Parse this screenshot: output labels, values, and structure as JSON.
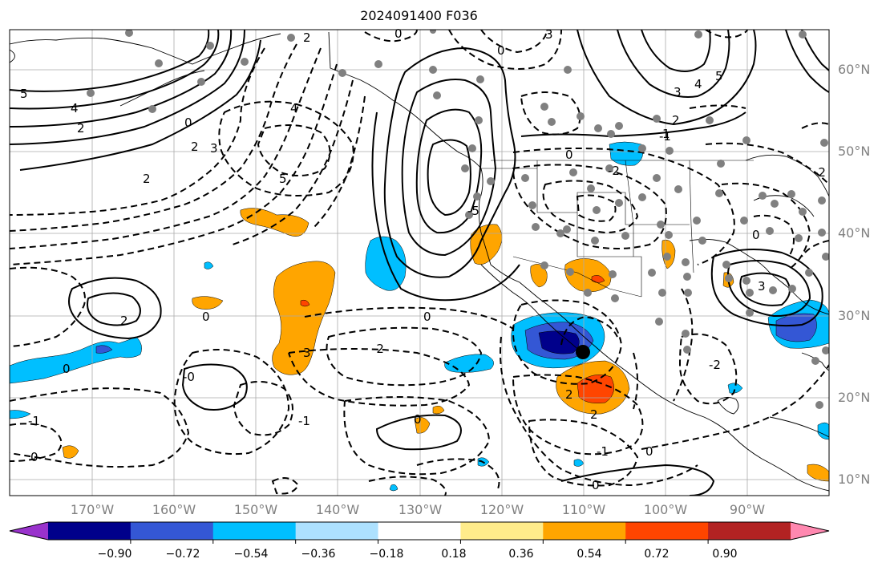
{
  "title": "2024091400 F036",
  "lat_labels": [
    "60°N",
    "50°N",
    "40°N",
    "30°N",
    "20°N",
    "10°N"
  ],
  "lon_labels": [
    "170°W",
    "160°W",
    "150°W",
    "140°W",
    "130°W",
    "120°W",
    "110°W",
    "100°W",
    "90°W"
  ],
  "colorbar": {
    "colors": [
      "#9932CC",
      "#00008B",
      "#3457D5",
      "#00BFFF",
      "#ADE1FF",
      "#FFFFFF",
      "#FFEC8B",
      "#FFA500",
      "#FF4500",
      "#B22222",
      "#FF88B0"
    ],
    "labels": [
      "−0.90",
      "−0.72",
      "−0.54",
      "−0.36",
      "−0.18",
      "0.18",
      "0.36",
      "0.54",
      "0.72",
      "0.90"
    ]
  },
  "contour_labels": [
    "2",
    "0",
    "3",
    "5",
    "4",
    "2",
    "0",
    "2",
    "3",
    "4",
    "5",
    "2",
    "0",
    "-2",
    "0",
    "-1",
    "0",
    "-2",
    "-2",
    "0",
    "3",
    "0",
    "1",
    "2",
    "3",
    "4",
    "5",
    "-5",
    "-2",
    "2",
    "0",
    "-1",
    "0",
    "-1",
    "-1",
    "2",
    "0",
    "-0",
    "3",
    "2",
    "0",
    "0"
  ],
  "legend_colors": {
    "orange": "#FFA500",
    "orange_red": "#FF4500",
    "deep_sky_blue": "#00BFFF",
    "royal_blue": "#3457D5",
    "navy": "#00008B"
  }
}
